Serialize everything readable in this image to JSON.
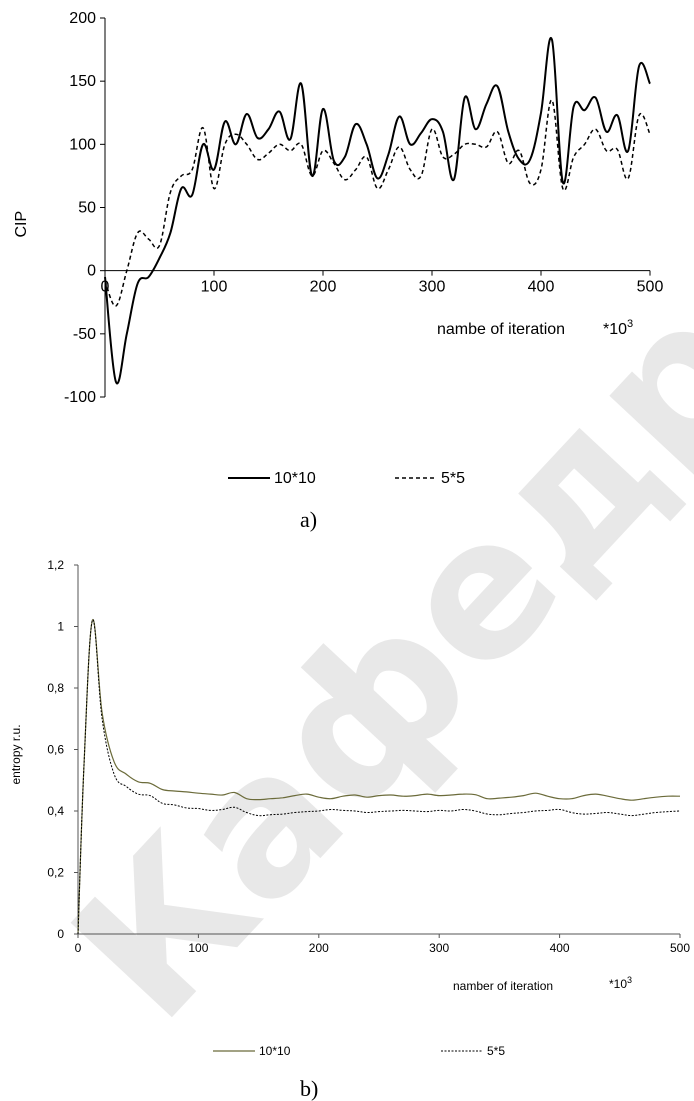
{
  "chart_data": [
    {
      "type": "line",
      "panel_label": "a)",
      "ylabel": "CIP",
      "xlabel": "nambe of iteration",
      "x_unit": "*10",
      "x_unit_exp": "3",
      "xlim": [
        0,
        500
      ],
      "ylim": [
        -100,
        200
      ],
      "x_ticks": [
        0,
        100,
        200,
        300,
        400,
        500
      ],
      "y_ticks": [
        -100,
        -50,
        0,
        50,
        100,
        150,
        200
      ],
      "legend_position": "bottom",
      "series": [
        {
          "name": "10*10",
          "color": "#000000",
          "dash": "solid",
          "x": [
            0,
            10,
            20,
            30,
            40,
            50,
            60,
            70,
            80,
            90,
            100,
            110,
            120,
            130,
            140,
            150,
            160,
            170,
            180,
            190,
            200,
            210,
            220,
            230,
            240,
            250,
            260,
            270,
            280,
            290,
            300,
            310,
            320,
            330,
            340,
            350,
            360,
            370,
            380,
            390,
            400,
            410,
            420,
            430,
            440,
            450,
            460,
            470,
            480,
            490,
            500
          ],
          "y": [
            -5,
            -88,
            -50,
            -10,
            -5,
            10,
            30,
            65,
            60,
            100,
            80,
            118,
            100,
            124,
            105,
            112,
            126,
            104,
            148,
            75,
            128,
            87,
            90,
            116,
            100,
            73,
            92,
            122,
            100,
            109,
            120,
            110,
            72,
            137,
            112,
            132,
            146,
            110,
            88,
            88,
            125,
            183,
            70,
            130,
            127,
            137,
            110,
            123,
            95,
            162,
            148
          ]
        },
        {
          "name": "5*5",
          "color": "#000000",
          "dash": "dashed",
          "x": [
            0,
            10,
            20,
            30,
            40,
            50,
            60,
            70,
            80,
            90,
            100,
            110,
            120,
            130,
            140,
            150,
            160,
            170,
            180,
            190,
            200,
            210,
            220,
            230,
            240,
            250,
            260,
            270,
            280,
            290,
            300,
            310,
            320,
            330,
            340,
            350,
            360,
            370,
            380,
            390,
            400,
            410,
            420,
            430,
            440,
            450,
            460,
            470,
            480,
            490,
            500
          ],
          "y": [
            -8,
            -28,
            0,
            30,
            25,
            20,
            62,
            75,
            80,
            113,
            65,
            100,
            108,
            100,
            88,
            93,
            100,
            95,
            100,
            75,
            95,
            85,
            72,
            80,
            90,
            65,
            80,
            98,
            80,
            75,
            112,
            90,
            92,
            100,
            100,
            98,
            110,
            85,
            95,
            69,
            80,
            135,
            65,
            90,
            100,
            112,
            95,
            96,
            73,
            123,
            108
          ]
        }
      ]
    },
    {
      "type": "line",
      "panel_label": "b)",
      "ylabel": "entropy r.u.",
      "xlabel": "namber of iteration",
      "x_unit": "*10",
      "x_unit_exp": "3",
      "xlim": [
        0,
        500
      ],
      "ylim": [
        0,
        1.2
      ],
      "x_ticks": [
        0,
        100,
        200,
        300,
        400,
        500
      ],
      "y_ticks": [
        "0",
        "0,2",
        "0,4",
        "0,6",
        "0,8",
        "1",
        "1,2"
      ],
      "legend_position": "bottom",
      "series": [
        {
          "name": "10*10",
          "color": "#6b6b3a",
          "dash": "solid",
          "x": [
            0,
            5,
            12,
            20,
            30,
            40,
            50,
            60,
            70,
            80,
            90,
            100,
            110,
            120,
            130,
            140,
            150,
            160,
            170,
            180,
            190,
            200,
            210,
            220,
            230,
            240,
            250,
            260,
            270,
            280,
            290,
            300,
            310,
            320,
            330,
            340,
            350,
            360,
            370,
            380,
            390,
            400,
            410,
            420,
            430,
            440,
            450,
            460,
            470,
            480,
            490,
            500
          ],
          "y": [
            0,
            0.55,
            1.02,
            0.72,
            0.56,
            0.52,
            0.495,
            0.49,
            0.47,
            0.465,
            0.462,
            0.458,
            0.455,
            0.452,
            0.46,
            0.44,
            0.437,
            0.44,
            0.443,
            0.45,
            0.455,
            0.445,
            0.44,
            0.448,
            0.452,
            0.445,
            0.45,
            0.452,
            0.448,
            0.45,
            0.455,
            0.45,
            0.452,
            0.455,
            0.453,
            0.44,
            0.442,
            0.445,
            0.45,
            0.458,
            0.448,
            0.44,
            0.44,
            0.45,
            0.455,
            0.448,
            0.44,
            0.435,
            0.44,
            0.445,
            0.448,
            0.448
          ]
        },
        {
          "name": "5*5",
          "color": "#000000",
          "dash": "dotted",
          "x": [
            0,
            5,
            12,
            20,
            30,
            40,
            50,
            60,
            70,
            80,
            90,
            100,
            110,
            120,
            130,
            140,
            150,
            160,
            170,
            180,
            190,
            200,
            210,
            220,
            230,
            240,
            250,
            260,
            270,
            280,
            290,
            300,
            310,
            320,
            330,
            340,
            350,
            360,
            370,
            380,
            390,
            400,
            410,
            420,
            430,
            440,
            450,
            460,
            470,
            480,
            490,
            500
          ],
          "y": [
            0,
            0.55,
            1.02,
            0.7,
            0.52,
            0.48,
            0.455,
            0.45,
            0.425,
            0.42,
            0.41,
            0.408,
            0.402,
            0.405,
            0.412,
            0.395,
            0.385,
            0.388,
            0.39,
            0.395,
            0.398,
            0.4,
            0.405,
            0.402,
            0.4,
            0.395,
            0.398,
            0.4,
            0.402,
            0.4,
            0.398,
            0.402,
            0.4,
            0.405,
            0.4,
            0.39,
            0.388,
            0.392,
            0.395,
            0.4,
            0.402,
            0.405,
            0.395,
            0.39,
            0.392,
            0.395,
            0.39,
            0.385,
            0.39,
            0.395,
            0.398,
            0.4
          ]
        }
      ]
    }
  ],
  "watermark": "Кафедра"
}
